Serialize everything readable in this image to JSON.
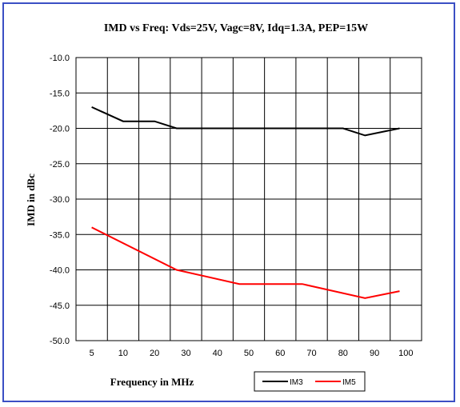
{
  "chart_data": {
    "type": "line",
    "title": "IMD vs Freq: Vds=25V, Vagc=8V, Idq=1.3A, PEP=15W",
    "xlabel": "Frequency in MHz",
    "ylabel": "IMD in dBc",
    "categories": [
      "5",
      "10",
      "20",
      "30",
      "40",
      "50",
      "60",
      "70",
      "80",
      "90",
      "100"
    ],
    "ylim": [
      -50,
      -10
    ],
    "yticks": [
      "-10.0",
      "-15.0",
      "-20.0",
      "-25.0",
      "-30.0",
      "-35.0",
      "-40.0",
      "-45.0",
      "-50.0"
    ],
    "grid": true,
    "legend_position": "bottom-right",
    "series": [
      {
        "name": "IM3",
        "color": "#000000",
        "points": [
          [
            5,
            -17
          ],
          [
            10,
            -19
          ],
          [
            20,
            -19
          ],
          [
            27,
            -20
          ],
          [
            40,
            -20
          ],
          [
            50,
            -20
          ],
          [
            60,
            -20
          ],
          [
            70,
            -20
          ],
          [
            80,
            -20
          ],
          [
            87,
            -21
          ],
          [
            98,
            -20
          ]
        ]
      },
      {
        "name": "IM5",
        "color": "#ff0000",
        "points": [
          [
            5,
            -34
          ],
          [
            27,
            -40
          ],
          [
            47,
            -42
          ],
          [
            67,
            -42
          ],
          [
            87,
            -44
          ],
          [
            98,
            -43
          ]
        ]
      }
    ]
  }
}
